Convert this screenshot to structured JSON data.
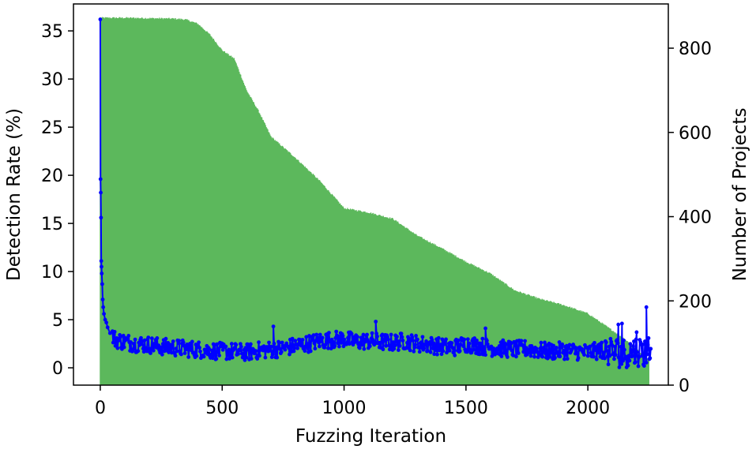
{
  "chart_data": {
    "type": "line",
    "title": "",
    "xlabel": "Fuzzing Iteration",
    "ylabel": "Detection Rate (%)",
    "y2label": "Number of Projects",
    "xlim": [
      -110,
      2330
    ],
    "ylim": [
      -1.8,
      37.8
    ],
    "y2lim": [
      0,
      905
    ],
    "xticks": [
      0,
      500,
      1000,
      1500,
      2000
    ],
    "yticks": [
      0,
      5,
      10,
      15,
      20,
      25,
      30,
      35
    ],
    "y2ticks": [
      0,
      200,
      400,
      600,
      800
    ],
    "colors": {
      "projects_fill": "#5cb85c",
      "detection_line": "#0000ff"
    },
    "projects_series": {
      "name": "Number of Projects",
      "x": [
        0,
        100,
        200,
        300,
        350,
        400,
        450,
        500,
        550,
        600,
        650,
        700,
        800,
        900,
        1000,
        1100,
        1200,
        1300,
        1400,
        1500,
        1600,
        1700,
        1800,
        1900,
        2000,
        2050,
        2100,
        2150,
        2200,
        2250,
        2260
      ],
      "values": [
        872,
        872,
        871,
        870,
        868,
        858,
        832,
        795,
        775,
        700,
        650,
        590,
        540,
        485,
        420,
        410,
        395,
        355,
        325,
        293,
        265,
        225,
        205,
        190,
        170,
        150,
        130,
        110,
        85,
        60,
        0
      ]
    },
    "detection_series": {
      "name": "Detection Rate (%)",
      "x": [
        0,
        1,
        2,
        3,
        4,
        5,
        6,
        8,
        10,
        12,
        15,
        20,
        25,
        30,
        40,
        50,
        60,
        80,
        100,
        150,
        200,
        250,
        300,
        350,
        400,
        450,
        500,
        550,
        600,
        650,
        700,
        750,
        800,
        850,
        900,
        950,
        1000,
        1050,
        1100,
        1150,
        1200,
        1250,
        1300,
        1350,
        1400,
        1450,
        1500,
        1550,
        1600,
        1650,
        1700,
        1750,
        1800,
        1850,
        1900,
        1950,
        2000,
        2050,
        2100,
        2150,
        2200,
        2230,
        2250,
        2260
      ],
      "values": [
        36.2,
        19.6,
        18.2,
        15.6,
        11.1,
        10.5,
        9.8,
        8.7,
        7.1,
        6.3,
        5.6,
        5.0,
        4.7,
        4.2,
        3.6,
        3.3,
        3.0,
        2.8,
        2.7,
        2.5,
        2.4,
        2.2,
        2.1,
        2.0,
        1.9,
        1.8,
        1.7,
        1.7,
        1.6,
        1.8,
        1.9,
        2.0,
        2.3,
        2.5,
        2.8,
        2.9,
        3.0,
        2.7,
        2.8,
        2.7,
        2.6,
        2.8,
        2.5,
        2.4,
        2.2,
        2.1,
        2.5,
        2.3,
        2.1,
        2.0,
        1.9,
        2.0,
        1.8,
        1.7,
        1.8,
        1.7,
        1.6,
        1.8,
        1.7,
        1.5,
        1.8,
        1.6,
        1.9,
        1.0
      ]
    },
    "legend": "none",
    "grid": false
  }
}
